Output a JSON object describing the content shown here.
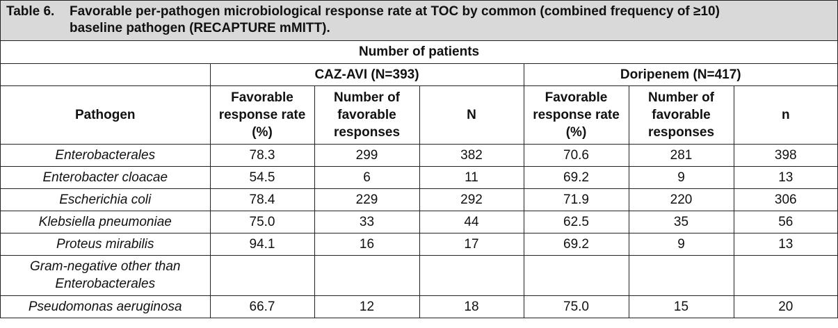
{
  "table": {
    "title_number": "Table 6.",
    "title_line1": "Favorable per-pathogen microbiological response rate at TOC by common (combined frequency of ≥10)",
    "title_line2": "baseline pathogen (RECAPTURE mMITT).",
    "super_header": "Number of patients",
    "groups": [
      {
        "label": "CAZ-AVI (N=393)"
      },
      {
        "label": "Doripenem (N=417)"
      }
    ],
    "columns": {
      "pathogen": "Pathogen",
      "caz_rate": "Favorable response rate (%)",
      "caz_fav": "Number of favorable responses",
      "caz_n": "N",
      "dor_rate": "Favorable response rate (%)",
      "dor_fav": "Number of favorable responses",
      "dor_n": "n"
    },
    "rows": [
      {
        "pathogen": "Enterobacterales",
        "caz_rate": "78.3",
        "caz_fav": "299",
        "caz_n": "382",
        "dor_rate": "70.6",
        "dor_fav": "281",
        "dor_n": "398"
      },
      {
        "pathogen": "Enterobacter cloacae",
        "caz_rate": "54.5",
        "caz_fav": "6",
        "caz_n": "11",
        "dor_rate": "69.2",
        "dor_fav": "9",
        "dor_n": "13"
      },
      {
        "pathogen": "Escherichia coli",
        "caz_rate": "78.4",
        "caz_fav": "229",
        "caz_n": "292",
        "dor_rate": "71.9",
        "dor_fav": "220",
        "dor_n": "306"
      },
      {
        "pathogen": "Klebsiella pneumoniae",
        "caz_rate": "75.0",
        "caz_fav": "33",
        "caz_n": "44",
        "dor_rate": "62.5",
        "dor_fav": "35",
        "dor_n": "56"
      },
      {
        "pathogen": "Proteus mirabilis",
        "caz_rate": "94.1",
        "caz_fav": "16",
        "caz_n": "17",
        "dor_rate": "69.2",
        "dor_fav": "9",
        "dor_n": "13"
      },
      {
        "pathogen": "Gram-negative other than Enterobacterales",
        "caz_rate": "",
        "caz_fav": "",
        "caz_n": "",
        "dor_rate": "",
        "dor_fav": "",
        "dor_n": ""
      },
      {
        "pathogen": "Pseudomonas aeruginosa",
        "caz_rate": "66.7",
        "caz_fav": "12",
        "caz_n": "18",
        "dor_rate": "75.0",
        "dor_fav": "15",
        "dor_n": "20"
      }
    ]
  }
}
